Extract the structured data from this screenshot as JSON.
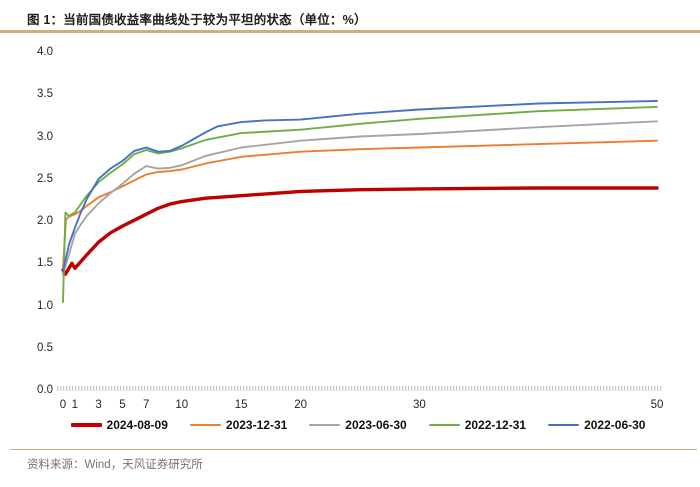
{
  "header": {
    "title": "图 1：当前国债收益率曲线处于较为平坦的状态（单位：%）"
  },
  "footer": {
    "source_note": "资料来源：Wind，天风证券研究所"
  },
  "accent_colors": {
    "rule_tan": "#D2AE7B",
    "tick_gray": "#C9C9C9"
  },
  "chart_data": {
    "type": "line",
    "title": "当前国债收益率曲线处于较为平坦的状态",
    "unit": "%",
    "xlabel": "",
    "ylabel": "",
    "xlim": [
      0,
      50
    ],
    "ylim": [
      0,
      4.0
    ],
    "grid": false,
    "legend_position": "bottom",
    "x_ticks": [
      0,
      1,
      3,
      5,
      7,
      10,
      15,
      20,
      30,
      50
    ],
    "y_ticks": [
      "4.0",
      "3.5",
      "3.0",
      "2.5",
      "2.0",
      "1.5",
      "1.0",
      "0.5",
      "0.0"
    ],
    "series": [
      {
        "name": "2024-08-09",
        "color": "#C00000",
        "line_width": 3.4,
        "x": [
          0,
          0.2,
          0.5,
          0.75,
          1,
          1.5,
          2,
          3,
          4,
          5,
          6,
          7,
          8,
          9,
          10,
          12,
          15,
          20,
          25,
          30,
          40,
          50
        ],
        "y": [
          1.42,
          1.37,
          1.44,
          1.5,
          1.44,
          1.52,
          1.6,
          1.75,
          1.86,
          1.94,
          2.01,
          2.08,
          2.15,
          2.2,
          2.23,
          2.27,
          2.3,
          2.35,
          2.37,
          2.38,
          2.39,
          2.39
        ]
      },
      {
        "name": "2023-12-31",
        "color": "#ED7D31",
        "line_width": 1.9,
        "x": [
          0,
          0.25,
          0.5,
          1,
          1.5,
          2,
          3,
          4,
          5,
          6,
          7,
          8,
          9,
          10,
          12,
          15,
          20,
          25,
          30,
          40,
          50
        ],
        "y": [
          1.45,
          2.02,
          2.05,
          2.08,
          2.12,
          2.18,
          2.28,
          2.34,
          2.41,
          2.48,
          2.55,
          2.58,
          2.59,
          2.61,
          2.68,
          2.76,
          2.82,
          2.85,
          2.87,
          2.91,
          2.95
        ]
      },
      {
        "name": "2023-06-30",
        "color": "#A5A5A5",
        "line_width": 1.9,
        "x": [
          0,
          0.5,
          1,
          1.5,
          2,
          3,
          4,
          5,
          6,
          7,
          8,
          9,
          10,
          12,
          15,
          20,
          25,
          30,
          40,
          50
        ],
        "y": [
          1.37,
          1.6,
          1.85,
          1.96,
          2.06,
          2.21,
          2.33,
          2.44,
          2.56,
          2.65,
          2.62,
          2.63,
          2.66,
          2.77,
          2.87,
          2.95,
          3.0,
          3.03,
          3.11,
          3.18
        ]
      },
      {
        "name": "2022-12-31",
        "color": "#70AD47",
        "line_width": 1.9,
        "x": [
          0,
          0.2,
          0.5,
          1,
          1.5,
          2,
          3,
          4,
          5,
          6,
          7,
          8,
          9,
          10,
          12,
          15,
          20,
          25,
          30,
          40,
          50
        ],
        "y": [
          1.04,
          2.1,
          2.06,
          2.1,
          2.2,
          2.3,
          2.46,
          2.57,
          2.67,
          2.79,
          2.84,
          2.8,
          2.82,
          2.86,
          2.96,
          3.04,
          3.08,
          3.15,
          3.21,
          3.3,
          3.35
        ]
      },
      {
        "name": "2022-06-30",
        "color": "#4472C4",
        "line_width": 1.9,
        "x": [
          0,
          0.5,
          1,
          1.5,
          2,
          3,
          4,
          5,
          6,
          7,
          8,
          9,
          10,
          11,
          12,
          13,
          15,
          17,
          20,
          25,
          30,
          40,
          50
        ],
        "y": [
          1.4,
          1.72,
          1.92,
          2.1,
          2.26,
          2.5,
          2.62,
          2.71,
          2.83,
          2.87,
          2.82,
          2.83,
          2.89,
          2.97,
          3.05,
          3.12,
          3.17,
          3.19,
          3.2,
          3.27,
          3.32,
          3.39,
          3.42
        ]
      }
    ]
  }
}
